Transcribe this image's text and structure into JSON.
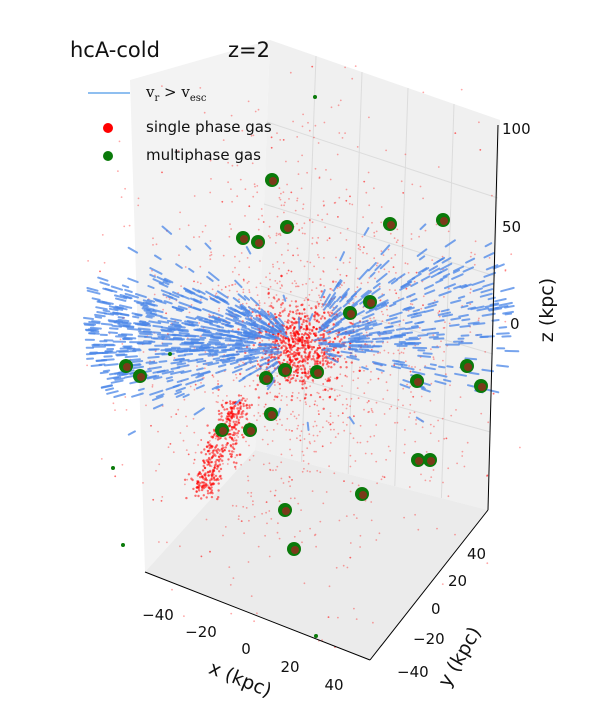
{
  "chart_data": {
    "type": "scatter",
    "title": "hcA-cold",
    "subtitle": "z=2",
    "xlabel": "x (kpc)",
    "ylabel": "y (kpc)",
    "zlabel": "z (kpc)",
    "xticks": [
      "−40",
      "−20",
      "0",
      "20",
      "40"
    ],
    "yticks": [
      "−40",
      "−20",
      "0",
      "20",
      "40"
    ],
    "zticks": [
      "0",
      "50",
      "100"
    ],
    "xlim": [
      -50,
      50
    ],
    "ylim": [
      -50,
      50
    ],
    "zlim": [
      -60,
      110
    ],
    "grid": true,
    "legend_position": "top-left",
    "series": [
      {
        "name": "v_r > v_esc",
        "label_main": "v",
        "label_sub1": "r",
        "label_sep": " > v",
        "label_sub2": "esc",
        "marker": "arrow",
        "color": "#4a86e8"
      },
      {
        "name": "single phase gas",
        "marker": "dot",
        "color": "#ff0000"
      },
      {
        "name": "multiphase gas",
        "marker": "dot",
        "color": "#0a7a0a"
      }
    ],
    "clump_color": "#7a3a1a"
  }
}
